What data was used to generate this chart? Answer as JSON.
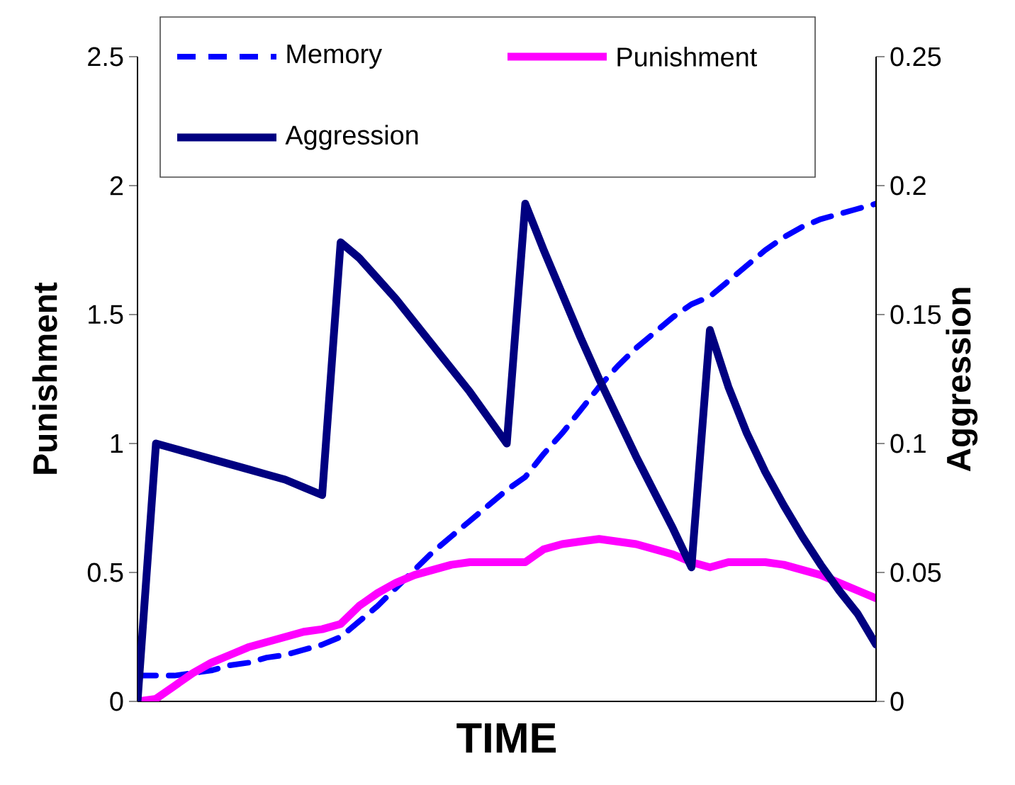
{
  "chart_data": {
    "type": "line",
    "xlabel": "TIME",
    "ylabel": "Punishment",
    "y2label": "Aggression",
    "categories": [
      null,
      null,
      null,
      null,
      null,
      null,
      null,
      null,
      null,
      null,
      null,
      null,
      null,
      null,
      null,
      null,
      null,
      null,
      null,
      null,
      null,
      null,
      null,
      null,
      null,
      null,
      null,
      null,
      null,
      null,
      null,
      null,
      null,
      null,
      null,
      null,
      null,
      null,
      null,
      null,
      null
    ],
    "series": [
      {
        "name": "Memory",
        "color": "#0000ff",
        "line_style": "dashed",
        "values": [
          0.1,
          0.1,
          0.1,
          0.11,
          0.12,
          0.14,
          0.15,
          0.17,
          0.18,
          0.2,
          0.22,
          0.25,
          0.31,
          0.37,
          0.44,
          0.51,
          0.58,
          0.64,
          0.7,
          0.76,
          0.82,
          0.87,
          0.96,
          1.04,
          1.13,
          1.22,
          1.3,
          1.37,
          1.43,
          1.49,
          1.54,
          1.57,
          1.63,
          1.69,
          1.75,
          1.8,
          1.84,
          1.87,
          1.89,
          1.91,
          1.93
        ]
      },
      {
        "name": "Punishment",
        "color": "#ff00ff",
        "line_style": "solid",
        "values": [
          0,
          0.01,
          0.06,
          0.11,
          0.15,
          0.18,
          0.21,
          0.23,
          0.25,
          0.27,
          0.28,
          0.3,
          0.37,
          0.42,
          0.46,
          0.49,
          0.51,
          0.53,
          0.54,
          0.54,
          0.54,
          0.54,
          0.59,
          0.61,
          0.62,
          0.63,
          0.62,
          0.61,
          0.59,
          0.57,
          0.54,
          0.52,
          0.54,
          0.54,
          0.54,
          0.53,
          0.51,
          0.49,
          0.46,
          0.43,
          0.4
        ]
      },
      {
        "name": "Aggression",
        "color": "#000080",
        "line_style": "solid",
        "axis": "y2",
        "values": [
          0,
          0.1,
          0.098,
          0.096,
          0.094,
          0.092,
          0.09,
          0.088,
          0.086,
          0.083,
          0.08,
          0.178,
          0.172,
          0.164,
          0.156,
          0.147,
          0.138,
          0.129,
          0.12,
          0.11,
          0.1,
          0.193,
          0.175,
          0.158,
          0.141,
          0.125,
          0.11,
          0.095,
          0.081,
          0.067,
          0.052,
          0.144,
          0.122,
          0.104,
          0.089,
          0.076,
          0.064,
          0.053,
          0.043,
          0.034,
          0.022
        ]
      }
    ],
    "ylim": [
      0,
      2.5
    ],
    "yticks": [
      0,
      0.5,
      1,
      1.5,
      2,
      2.5
    ],
    "y2lim": [
      0,
      0.25
    ],
    "y2ticks": [
      0,
      0.05,
      0.1,
      0.15,
      0.2,
      0.25
    ],
    "legend": "top"
  }
}
